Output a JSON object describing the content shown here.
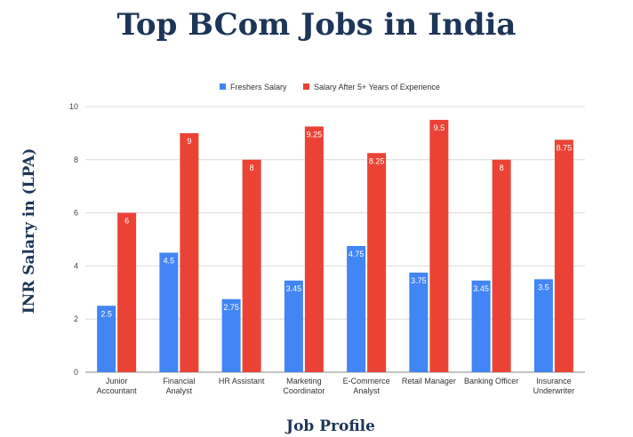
{
  "chart_data": {
    "type": "bar",
    "title": "Top BCom Jobs in India",
    "xlabel": "Job Profile",
    "ylabel": "INR Salary in (LPA)",
    "ylim": [
      0,
      10
    ],
    "yticks": [
      "0",
      "2",
      "4",
      "6",
      "8",
      "10"
    ],
    "grid": true,
    "legend_position": "top",
    "categories": [
      [
        "Junior",
        "Accountant"
      ],
      [
        "Financial",
        "Analyst"
      ],
      [
        "HR Assistant"
      ],
      [
        "Marketing",
        "Coordinator"
      ],
      [
        "E-Commerce",
        "Analyst"
      ],
      [
        "Retail Manager"
      ],
      [
        "Banking Officer"
      ],
      [
        "Insurance",
        "Underwriter"
      ]
    ],
    "series": [
      {
        "name": "Freshers Salary",
        "color": "#4285f4",
        "values": [
          2.5,
          4.5,
          2.75,
          3.45,
          4.75,
          3.75,
          3.45,
          3.5
        ],
        "labels": [
          "2.5",
          "4.5",
          "2.75",
          "3.45",
          "4.75",
          "3.75",
          "3.45",
          "3.5"
        ]
      },
      {
        "name": "Salary After 5+ Years of Experience",
        "color": "#ea4335",
        "values": [
          6,
          9,
          8,
          9.25,
          8.25,
          9.5,
          8,
          8.75
        ],
        "labels": [
          "6",
          "9",
          "8",
          "9.25",
          "8.25",
          "9.5",
          "8",
          "8.75"
        ]
      }
    ]
  }
}
